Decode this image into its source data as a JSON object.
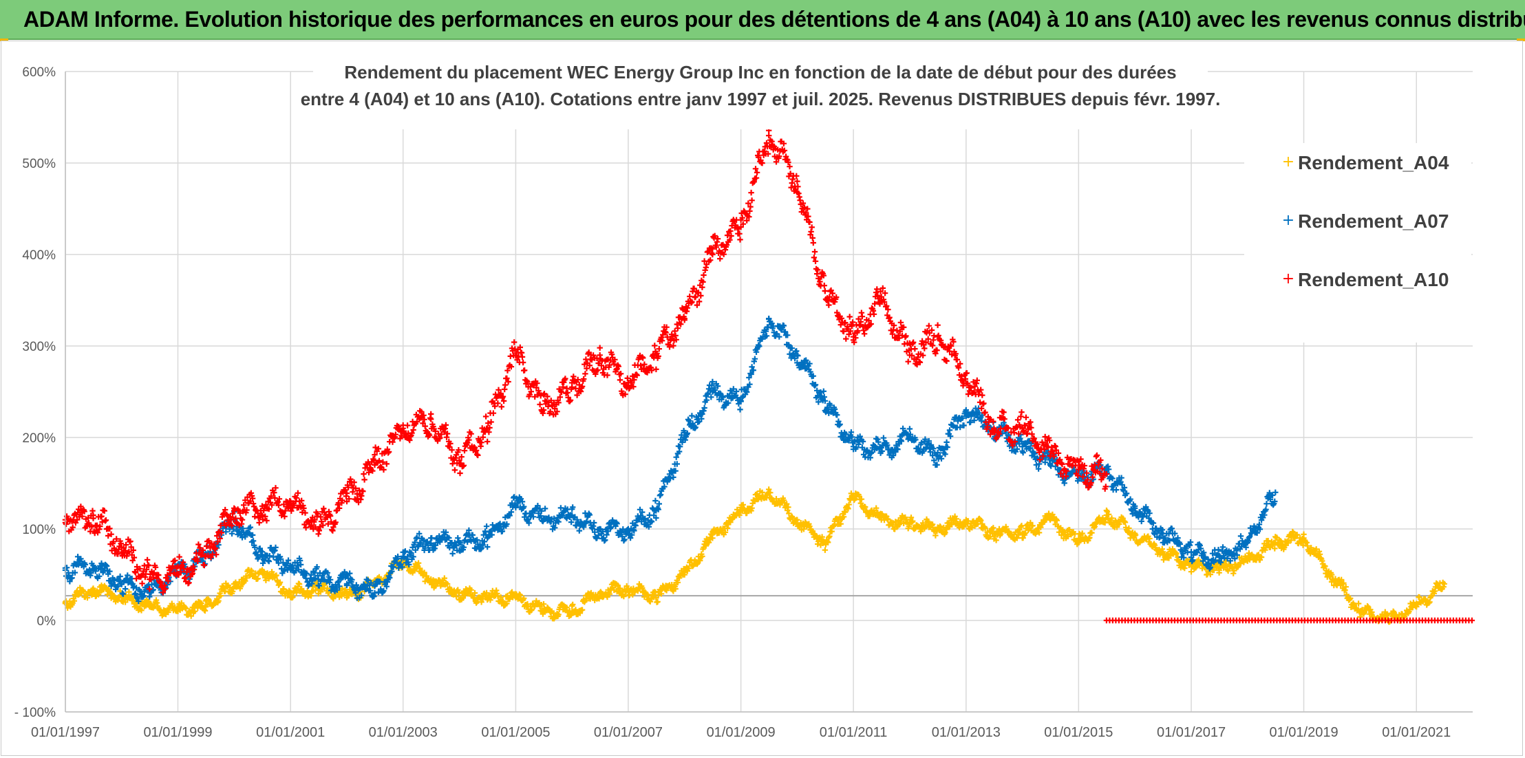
{
  "header": {
    "title": "ADAM Informe. Evolution historique des performances en euros pour des détentions de 4 ans (A04) à 10 ans (A10) avec les revenus connus distribués"
  },
  "colors": {
    "header_bg": "#7dcb7a",
    "a04": "#ffc000",
    "a07": "#0070c0",
    "a10": "#ff0000",
    "grid": "#d9d9d9"
  },
  "chart_data": {
    "type": "scatter",
    "title": "Rendement du placement WEC Energy Group Inc en fonction de la date de début pour des durées",
    "subtitle": "entre 4 (A04) et 10 ans (A10). Cotations entre janv 1997 et juil. 2025. Revenus DISTRIBUES depuis févr. 1997.",
    "xlabel": "",
    "ylabel": "",
    "xlim": [
      "1997-01-01",
      "2022-01-01"
    ],
    "ylim": [
      -100,
      600
    ],
    "y_ticks": [
      "- 100%",
      "0%",
      "100%",
      "200%",
      "300%",
      "400%",
      "500%",
      "600%"
    ],
    "x_ticks": [
      "01/01/1997",
      "01/01/1999",
      "01/01/2001",
      "01/01/2003",
      "01/01/2005",
      "01/01/2007",
      "01/01/2009",
      "01/01/2011",
      "01/01/2013",
      "01/01/2015",
      "01/01/2017",
      "01/01/2019",
      "01/01/2021"
    ],
    "grid": true,
    "legend_position": "top-right",
    "marker": "+",
    "series": [
      {
        "name": "Rendement_A04",
        "color": "#ffc000",
        "x": [
          "1997-01-01",
          "1997-07-01",
          "1998-01-01",
          "1998-07-01",
          "1999-01-01",
          "1999-07-01",
          "2000-01-01",
          "2000-07-01",
          "2001-01-01",
          "2001-07-01",
          "2002-01-01",
          "2002-07-01",
          "2003-01-01",
          "2003-07-01",
          "2004-01-01",
          "2004-07-01",
          "2005-01-01",
          "2005-07-01",
          "2006-01-01",
          "2006-07-01",
          "2007-01-01",
          "2007-07-01",
          "2008-01-01",
          "2008-07-01",
          "2009-01-01",
          "2009-07-01",
          "2010-01-01",
          "2010-07-01",
          "2011-01-01",
          "2011-07-01",
          "2012-01-01",
          "2012-07-01",
          "2013-01-01",
          "2013-07-01",
          "2014-01-01",
          "2014-07-01",
          "2015-01-01",
          "2015-07-01",
          "2016-01-01",
          "2016-07-01",
          "2017-01-01",
          "2017-07-01",
          "2018-01-01",
          "2018-07-01",
          "2019-01-01",
          "2019-07-01",
          "2020-01-01",
          "2020-07-01",
          "2021-01-01",
          "2021-07-01"
        ],
        "y": [
          20,
          35,
          25,
          15,
          10,
          15,
          40,
          55,
          30,
          35,
          25,
          40,
          65,
          45,
          30,
          25,
          25,
          10,
          10,
          30,
          35,
          25,
          50,
          90,
          120,
          140,
          110,
          85,
          135,
          110,
          105,
          100,
          110,
          95,
          95,
          110,
          85,
          115,
          95,
          75,
          60,
          55,
          65,
          85,
          90,
          50,
          10,
          0,
          15,
          40
        ]
      },
      {
        "name": "Rendement_A07",
        "color": "#0070c0",
        "x": [
          "1997-01-01",
          "1997-07-01",
          "1998-01-01",
          "1998-07-01",
          "1999-01-01",
          "1999-07-01",
          "2000-01-01",
          "2000-07-01",
          "2001-01-01",
          "2001-07-01",
          "2002-01-01",
          "2002-07-01",
          "2003-01-01",
          "2003-07-01",
          "2004-01-01",
          "2004-07-01",
          "2005-01-01",
          "2005-07-01",
          "2006-01-01",
          "2006-07-01",
          "2007-01-01",
          "2007-07-01",
          "2008-01-01",
          "2008-07-01",
          "2009-01-01",
          "2009-07-01",
          "2010-01-01",
          "2010-07-01",
          "2011-01-01",
          "2011-07-01",
          "2012-01-01",
          "2012-07-01",
          "2013-01-01",
          "2013-07-01",
          "2014-01-01",
          "2014-07-01",
          "2015-01-01",
          "2015-07-01",
          "2016-01-01",
          "2016-07-01",
          "2017-01-01",
          "2017-07-01",
          "2018-01-01",
          "2018-07-01"
        ],
        "y": [
          55,
          60,
          40,
          30,
          50,
          70,
          110,
          75,
          60,
          45,
          40,
          30,
          70,
          90,
          85,
          90,
          125,
          110,
          115,
          100,
          100,
          120,
          200,
          250,
          240,
          330,
          290,
          240,
          190,
          185,
          200,
          180,
          230,
          210,
          190,
          170,
          155,
          165,
          125,
          95,
          75,
          65,
          85,
          140
        ]
      },
      {
        "name": "Rendement_A10",
        "color": "#ff0000",
        "x": [
          "1997-01-01",
          "1997-07-01",
          "1998-01-01",
          "1998-07-01",
          "1999-01-01",
          "1999-07-01",
          "2000-01-01",
          "2000-07-01",
          "2001-01-01",
          "2001-07-01",
          "2002-01-01",
          "2002-07-01",
          "2003-01-01",
          "2003-07-01",
          "2004-01-01",
          "2004-07-01",
          "2005-01-01",
          "2005-07-01",
          "2006-01-01",
          "2006-07-01",
          "2007-01-01",
          "2007-07-01",
          "2008-01-01",
          "2008-07-01",
          "2009-01-01",
          "2009-07-01",
          "2010-01-01",
          "2010-07-01",
          "2011-01-01",
          "2011-07-01",
          "2012-01-01",
          "2012-07-01",
          "2013-01-01",
          "2013-07-01",
          "2014-01-01",
          "2014-07-01",
          "2015-01-01",
          "2015-07-01"
        ],
        "y": [
          110,
          115,
          80,
          45,
          50,
          70,
          120,
          125,
          130,
          100,
          130,
          170,
          210,
          220,
          175,
          210,
          290,
          230,
          255,
          290,
          260,
          290,
          330,
          400,
          430,
          530,
          480,
          360,
          310,
          350,
          290,
          310,
          270,
          210,
          210,
          180,
          165,
          160
        ]
      }
    ],
    "zero_series_range": {
      "x": [
        "2015-07-01",
        "2022-01-01"
      ],
      "y": 0,
      "color": "#ff0000"
    },
    "reference_line": {
      "y": 27,
      "color": "#a6a6a6"
    }
  },
  "legend": {
    "items": [
      {
        "label": "Rendement_A04",
        "color": "#ffc000"
      },
      {
        "label": "Rendement_A07",
        "color": "#0070c0"
      },
      {
        "label": "Rendement_A10",
        "color": "#ff0000"
      }
    ]
  }
}
